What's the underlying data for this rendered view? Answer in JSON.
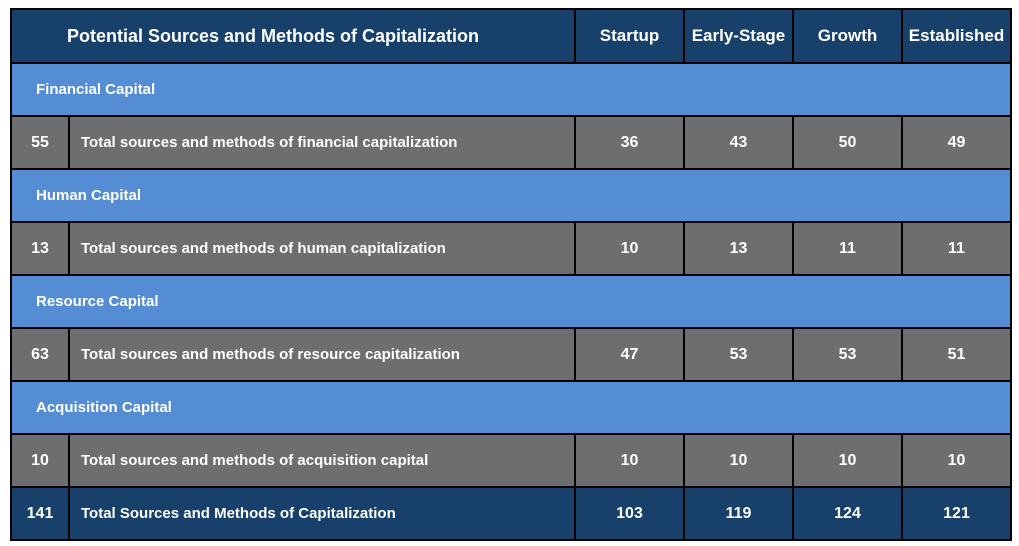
{
  "header": {
    "title": "Potential Sources and Methods of Capitalization",
    "stages": [
      "Startup",
      "Early-Stage",
      "Growth",
      "Established"
    ]
  },
  "sections": [
    {
      "name": "Financial Capital",
      "count": "55",
      "description": "Total sources and methods of financial capitalization",
      "values": [
        "36",
        "43",
        "50",
        "49"
      ]
    },
    {
      "name": "Human Capital",
      "count": "13",
      "description": "Total sources and methods of human capitalization",
      "values": [
        "10",
        "13",
        "11",
        "11"
      ]
    },
    {
      "name": "Resource Capital",
      "count": "63",
      "description": "Total sources and methods of resource capitalization",
      "values": [
        "47",
        "53",
        "53",
        "51"
      ]
    },
    {
      "name": "Acquisition Capital",
      "count": "10",
      "description": "Total sources and methods of acquisition capital",
      "values": [
        "10",
        "10",
        "10",
        "10"
      ]
    }
  ],
  "total": {
    "count": "141",
    "description": "Total Sources and Methods of Capitalization",
    "values": [
      "103",
      "119",
      "124",
      "121"
    ]
  },
  "colors": {
    "header_bg": "#17406a",
    "section_bg": "#548dd4",
    "data_bg": "#6d6e70",
    "text": "#ffffff"
  }
}
